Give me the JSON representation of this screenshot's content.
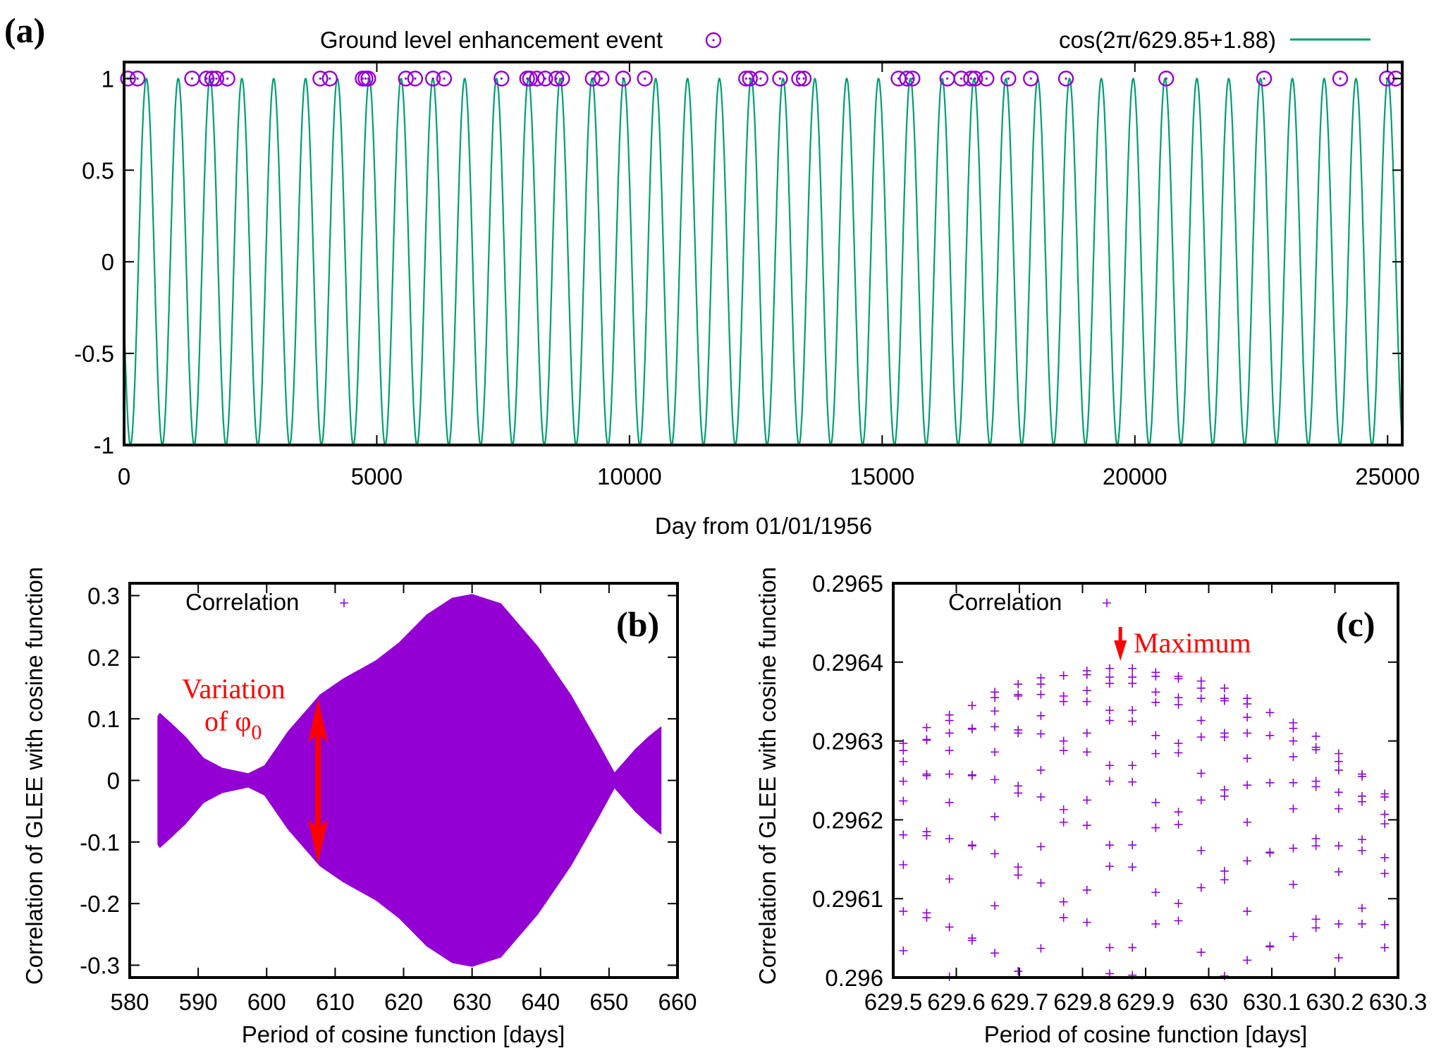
{
  "figure": {
    "panels": [
      "(a)",
      "(b)",
      "(c)"
    ]
  },
  "chart_data": [
    {
      "id": "a",
      "type": "line",
      "panel_label": "(a)",
      "title": "",
      "xlabel": "Day from 01/01/1956",
      "ylabel": "",
      "xlim": [
        0,
        25290
      ],
      "ylim": [
        -1,
        1.09
      ],
      "xticks": [
        0,
        5000,
        10000,
        15000,
        20000,
        25000
      ],
      "xtick_labels": [
        "0",
        "5000",
        "10000",
        "15000",
        "20000",
        "25000"
      ],
      "yticks": [
        1,
        0.5,
        0,
        -0.5,
        -1
      ],
      "ytick_labels": [
        "1",
        "0.5",
        "0",
        "-0.5",
        "-1"
      ],
      "grid": false,
      "legend_placement": "top, outside",
      "colors": {
        "events": "#9400d3",
        "cosine": "#009e73"
      },
      "series": [
        {
          "name": "Ground level enhancement event",
          "kind": "scatter",
          "marker": "circle-dot",
          "y_value": 1,
          "x": [
            78,
            265,
            1346,
            1633,
            1743,
            1826,
            2046,
            3883,
            4070,
            4721,
            4777,
            4832,
            5576,
            5759,
            6112,
            6332,
            7467,
            7975,
            8031,
            8168,
            8333,
            8553,
            8669,
            9273,
            9449,
            9874,
            10304,
            12307,
            12383,
            12593,
            12979,
            13355,
            13448,
            15324,
            15489,
            15600,
            16288,
            16565,
            16759,
            16839,
            17064,
            17498,
            17942,
            18637,
            20620,
            22557,
            24062,
            24986,
            25160
          ]
        },
        {
          "name": "cos(2π/629.85+1.88)",
          "kind": "line",
          "function": {
            "period_days": 629.85,
            "phase": 1.88
          }
        }
      ]
    },
    {
      "id": "b",
      "type": "area",
      "panel_label": "(b)",
      "title": "",
      "xlabel": "Period of cosine function [days]",
      "ylabel": "Correlation of GLEE with cosine function",
      "xlim": [
        580,
        660
      ],
      "ylim": [
        -0.32,
        0.32
      ],
      "xticks": [
        580,
        590,
        600,
        610,
        620,
        630,
        640,
        650,
        660
      ],
      "xtick_labels": [
        "580",
        "590",
        "600",
        "610",
        "620",
        "630",
        "640",
        "650",
        "660"
      ],
      "yticks": [
        0.3,
        0.2,
        0.1,
        0,
        -0.1,
        -0.2,
        -0.3
      ],
      "ytick_labels": [
        "0.3",
        "0.2",
        "0.1",
        "0",
        "-0.1",
        "-0.2",
        "-0.3"
      ],
      "grid": false,
      "legend_placement": "top-left",
      "color": "#9400d3",
      "series": [
        {
          "name": "Correlation",
          "marker": "plus",
          "envelope_x": [
            584.1,
            584.4,
            586.0,
            588.1,
            590.8,
            593.5,
            597.3,
            599.7,
            603.1,
            607.8,
            611.2,
            615.9,
            619.3,
            623.4,
            627.1,
            630.0,
            634.2,
            639.6,
            644.4,
            648.4,
            650.8,
            653.8,
            655.9,
            657.6
          ],
          "envelope_upper": [
            0.104,
            0.109,
            0.093,
            0.071,
            0.036,
            0.02,
            0.011,
            0.024,
            0.079,
            0.139,
            0.165,
            0.194,
            0.223,
            0.269,
            0.296,
            0.302,
            0.287,
            0.217,
            0.139,
            0.061,
            0.012,
            0.05,
            0.072,
            0.087
          ],
          "envelope_lower": [
            -0.104,
            -0.109,
            -0.093,
            -0.071,
            -0.036,
            -0.02,
            -0.011,
            -0.024,
            -0.079,
            -0.139,
            -0.165,
            -0.194,
            -0.223,
            -0.269,
            -0.296,
            -0.302,
            -0.287,
            -0.217,
            -0.139,
            -0.061,
            -0.012,
            -0.05,
            -0.072,
            -0.087
          ]
        }
      ],
      "annotations": [
        {
          "text": "Variation",
          "color": "#ff0000"
        },
        {
          "text": "of φ",
          "subscript": "0",
          "color": "#ff0000"
        },
        {
          "type": "double-arrow",
          "x": 607.5,
          "y_from": 0.133,
          "y_to": -0.135,
          "color": "#ff0000"
        }
      ]
    },
    {
      "id": "c",
      "type": "scatter",
      "panel_label": "(c)",
      "title": "",
      "xlabel": "Period of cosine function [days]",
      "ylabel": "Correlation of GLEE with cosine function",
      "xlim": [
        629.5,
        630.3
      ],
      "ylim": [
        0.296,
        0.2965
      ],
      "xticks": [
        629.5,
        629.6,
        629.7,
        629.8,
        629.9,
        630.0,
        630.1,
        630.2,
        630.3
      ],
      "xtick_labels": [
        "629.5",
        "629.6",
        "629.7",
        "629.8",
        "629.9",
        "630",
        "630.1",
        "630.2",
        "630.3"
      ],
      "yticks": [
        0.2965,
        0.2964,
        0.2963,
        0.2962,
        0.2961,
        0.296
      ],
      "ytick_labels": [
        "0.2965",
        "0.2964",
        "0.2963",
        "0.2962",
        "0.2961",
        "0.296"
      ],
      "grid": false,
      "legend_placement": "top-left",
      "color": "#9400d3",
      "series": [
        {
          "name": "Correlation",
          "marker": "plus",
          "columns": [
            {
              "x": 629.516,
              "y": [
                0.296297,
                0.296288,
                0.296274,
                0.296249,
                0.296224,
                0.296181,
                0.296143,
                0.296084,
                0.296034
              ]
            },
            {
              "x": 629.553,
              "y": [
                0.296317,
                0.296302,
                0.296301,
                0.296258,
                0.296256,
                0.296185,
                0.29618,
                0.296082,
                0.296076
              ]
            },
            {
              "x": 629.589,
              "y": [
                0.296333,
                0.296326,
                0.29631,
                0.296288,
                0.296258,
                0.296222,
                0.296176,
                0.296125,
                0.296064,
                0.296001
              ]
            },
            {
              "x": 629.625,
              "y": [
                0.296345,
                0.296316,
                0.296315,
                0.296257,
                0.296256,
                0.296168,
                0.296167,
                0.29605,
                0.296047
              ]
            },
            {
              "x": 629.661,
              "y": [
                0.296362,
                0.296355,
                0.296338,
                0.296318,
                0.296286,
                0.296251,
                0.296204,
                0.296157,
                0.296091,
                0.296031
              ]
            },
            {
              "x": 629.698,
              "y": [
                0.296372,
                0.296359,
                0.296357,
                0.296314,
                0.29631,
                0.296243,
                0.296234,
                0.29614,
                0.29613,
                0.296008
              ]
            },
            {
              "x": 629.734,
              "y": [
                0.29638,
                0.296372,
                0.296359,
                0.296332,
                0.296309,
                0.296263,
                0.296229,
                0.296166,
                0.29612,
                0.296037
              ]
            },
            {
              "x": 629.77,
              "y": [
                0.296383,
                0.296357,
                0.29635,
                0.2963,
                0.296288,
                0.296213,
                0.296197,
                0.296096,
                0.296076
              ]
            },
            {
              "x": 629.807,
              "y": [
                0.296389,
                0.296384,
                0.296364,
                0.29635,
                0.29631,
                0.296286,
                0.296225,
                0.296193,
                0.296111,
                0.29607
              ]
            },
            {
              "x": 629.843,
              "y": [
                0.296392,
                0.296381,
                0.296373,
                0.296339,
                0.296326,
                0.296269,
                0.296249,
                0.296168,
                0.296141,
                0.296038,
                0.296005
              ]
            },
            {
              "x": 629.879,
              "y": [
                0.296392,
                0.296381,
                0.296373,
                0.296339,
                0.296325,
                0.296269,
                0.296248,
                0.296168,
                0.29614,
                0.296038,
                0.296003
              ]
            },
            {
              "x": 629.916,
              "y": [
                0.296387,
                0.296382,
                0.296362,
                0.296349,
                0.296307,
                0.296284,
                0.296222,
                0.29619,
                0.296108,
                0.296068
              ]
            },
            {
              "x": 629.952,
              "y": [
                0.296382,
                0.296379,
                0.296355,
                0.296346,
                0.296297,
                0.296285,
                0.29621,
                0.296194,
                0.296094,
                0.296072
              ]
            },
            {
              "x": 629.988,
              "y": [
                0.296376,
                0.296367,
                0.296354,
                0.296326,
                0.296305,
                0.296259,
                0.296225,
                0.296161,
                0.296114,
                0.296032
              ]
            },
            {
              "x": 630.025,
              "y": [
                0.296367,
                0.296354,
                0.296351,
                0.29631,
                0.296305,
                0.296238,
                0.29623,
                0.296135,
                0.296124,
                0.296002
              ]
            },
            {
              "x": 630.061,
              "y": [
                0.296354,
                0.296347,
                0.29633,
                0.29631,
                0.296278,
                0.296244,
                0.296197,
                0.296148,
                0.296084,
                0.296022
              ]
            },
            {
              "x": 630.097,
              "y": [
                0.296336,
                0.296307,
                0.296247,
                0.296159,
                0.296158,
                0.29604,
                0.296039
              ]
            },
            {
              "x": 630.134,
              "y": [
                0.296323,
                0.296316,
                0.2963,
                0.29628,
                0.296247,
                0.296214,
                0.296164,
                0.296118,
                0.296052
              ]
            },
            {
              "x": 630.17,
              "y": [
                0.296306,
                0.296292,
                0.296289,
                0.296249,
                0.296242,
                0.296176,
                0.296167,
                0.296074,
                0.296063
              ]
            },
            {
              "x": 630.206,
              "y": [
                0.296284,
                0.296274,
                0.296263,
                0.296235,
                0.296214,
                0.296167,
                0.296134,
                0.296068,
                0.296025
              ]
            },
            {
              "x": 630.243,
              "y": [
                0.296258,
                0.296255,
                0.29623,
                0.296223,
                0.296175,
                0.296161,
                0.296088,
                0.296068
              ]
            },
            {
              "x": 630.279,
              "y": [
                0.296233,
                0.296229,
                0.296207,
                0.296195,
                0.296152,
                0.296132,
                0.296067,
                0.296038
              ]
            }
          ]
        }
      ],
      "annotations": [
        {
          "text": "Maximum",
          "type": "down-arrow",
          "x": 629.86,
          "color": "#ff0000"
        }
      ]
    }
  ]
}
